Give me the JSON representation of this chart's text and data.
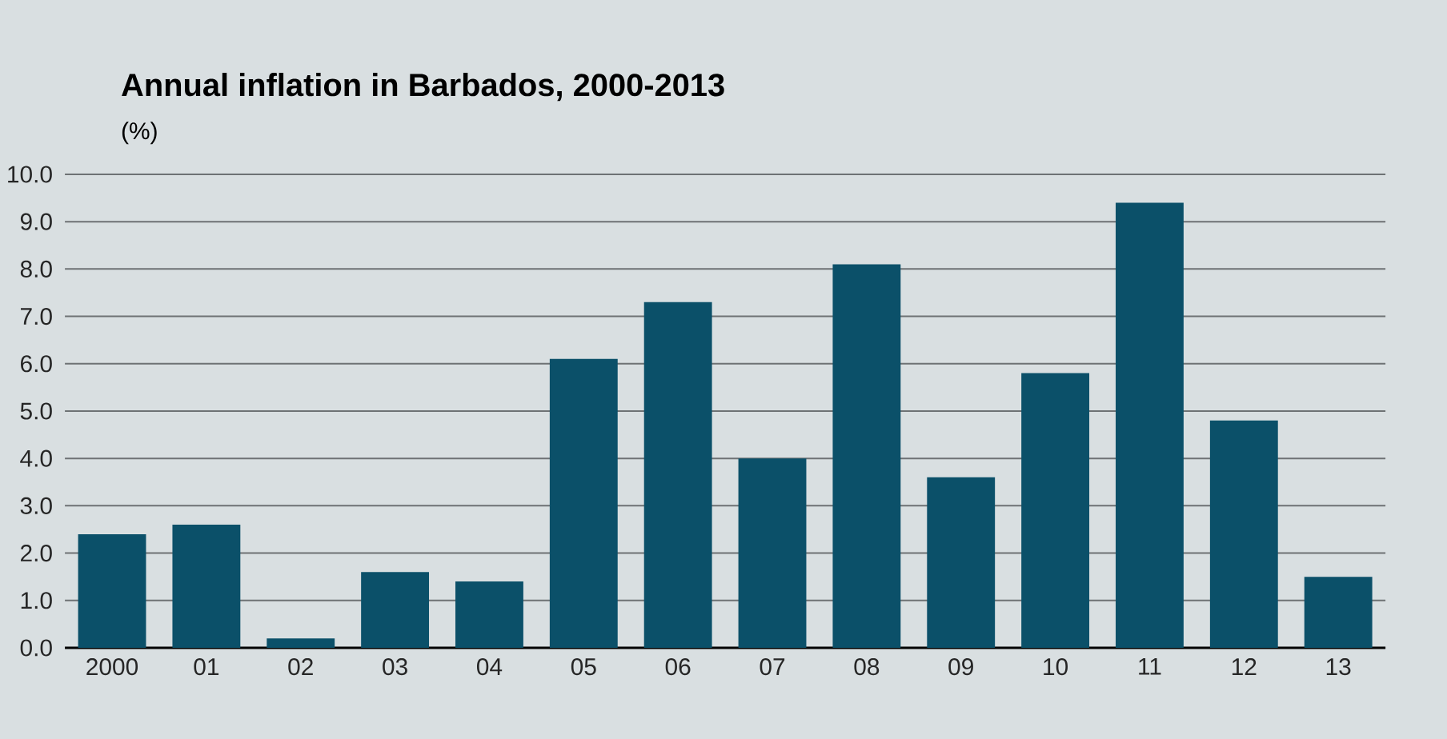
{
  "chart_data": {
    "type": "bar",
    "title": "Annual inflation in Barbados, 2000-2013",
    "subtitle": "(%)",
    "categories": [
      "2000",
      "01",
      "02",
      "03",
      "04",
      "05",
      "06",
      "07",
      "08",
      "09",
      "10",
      "11",
      "12",
      "13"
    ],
    "values": [
      2.4,
      2.6,
      0.2,
      1.6,
      1.4,
      6.1,
      7.3,
      4.0,
      8.1,
      3.6,
      5.8,
      9.4,
      4.8,
      1.5
    ],
    "color": "#0b5069",
    "ylim": [
      0,
      10
    ],
    "yticks": [
      {
        "value": 0,
        "label": "0.0"
      },
      {
        "value": 1,
        "label": "1.0"
      },
      {
        "value": 2,
        "label": "2.0"
      },
      {
        "value": 3,
        "label": "3.0"
      },
      {
        "value": 4,
        "label": "4.0"
      },
      {
        "value": 5,
        "label": "5.0"
      },
      {
        "value": 6,
        "label": "6.0"
      },
      {
        "value": 7,
        "label": "7.0"
      },
      {
        "value": 8,
        "label": "8.0"
      },
      {
        "value": 9,
        "label": "9.0"
      },
      {
        "value": 10,
        "label": "10.0"
      }
    ],
    "grid": "y"
  }
}
